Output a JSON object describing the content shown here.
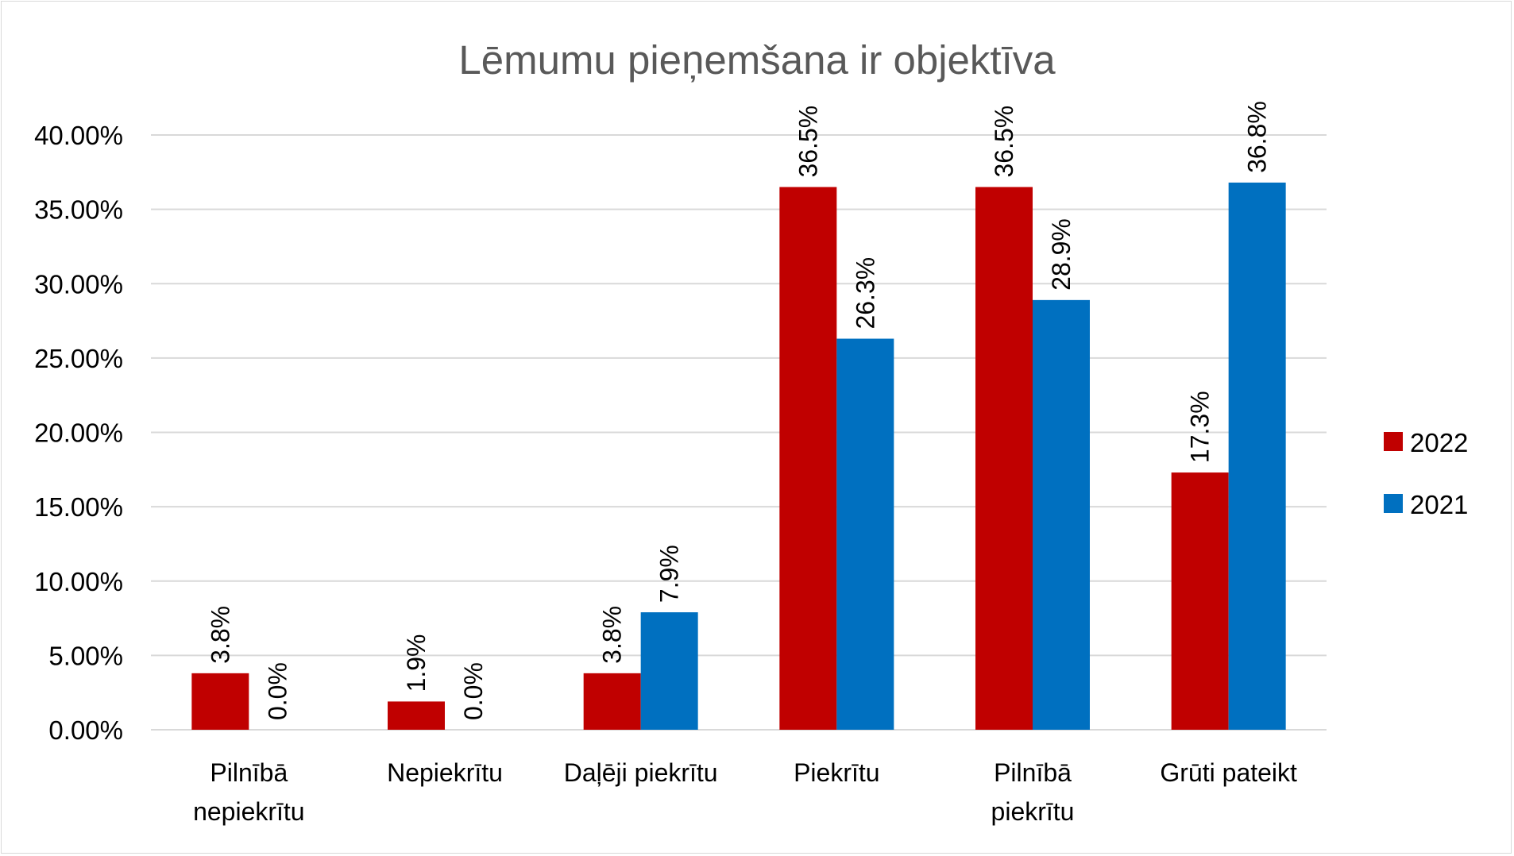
{
  "chart_data": {
    "type": "bar",
    "title": "Lēmumu pieņemšana ir objektīva",
    "xlabel": "",
    "ylabel": "",
    "categories": [
      [
        "Pilnībā",
        "nepiekrītu"
      ],
      [
        "Nepiekrītu"
      ],
      [
        "Daļēji piekrītu"
      ],
      [
        "Piekrītu"
      ],
      [
        "Pilnībā",
        "piekrītu"
      ],
      [
        "Grūti pateikt"
      ]
    ],
    "series": [
      {
        "name": "2022",
        "color": "#c00000",
        "values": [
          3.8,
          1.9,
          3.8,
          36.5,
          36.5,
          17.3
        ],
        "labels": [
          "3.8%",
          "1.9%",
          "3.8%",
          "36.5%",
          "36.5%",
          "17.3%"
        ]
      },
      {
        "name": "2021",
        "color": "#0070c0",
        "values": [
          0.0,
          0.0,
          7.9,
          26.3,
          28.9,
          36.8
        ],
        "labels": [
          "0.0%",
          "0.0%",
          "7.9%",
          "26.3%",
          "28.9%",
          "36.8%"
        ]
      }
    ],
    "ylim": [
      0,
      40
    ],
    "yticks": [
      0,
      5,
      10,
      15,
      20,
      25,
      30,
      35,
      40
    ],
    "ytick_labels": [
      "0.00%",
      "5.00%",
      "10.00%",
      "15.00%",
      "20.00%",
      "25.00%",
      "30.00%",
      "35.00%",
      "40.00%"
    ],
    "grid": true,
    "legend_position": "right",
    "gridline_color": "#d9d9d9"
  }
}
